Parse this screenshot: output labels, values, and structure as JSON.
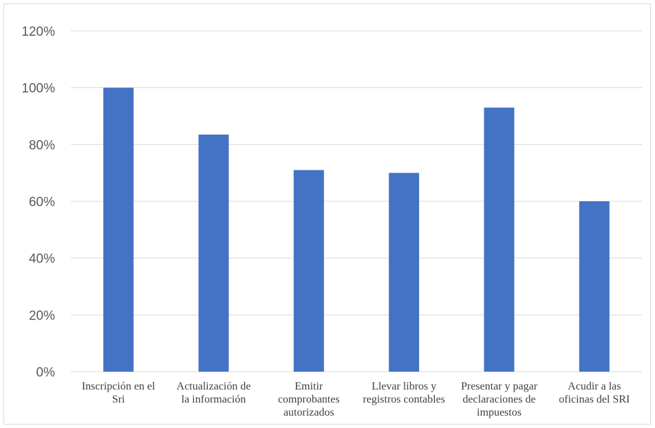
{
  "chart_data": {
    "type": "bar",
    "title": "",
    "xlabel": "",
    "ylabel": "",
    "categories": [
      [
        "Inscripción en el",
        "Sri"
      ],
      [
        "Actualización de",
        "la información"
      ],
      [
        "Emitir",
        "comprobantes",
        "autorizados"
      ],
      [
        "Llevar libros y",
        "registros contables"
      ],
      [
        "Presentar y pagar",
        "declaraciones de",
        "impuestos"
      ],
      [
        "Acudir a las",
        "oficinas del SRI"
      ]
    ],
    "values": [
      100,
      83.5,
      71,
      70,
      93,
      60
    ],
    "ylim": [
      0,
      120
    ],
    "yticks": [
      0,
      20,
      40,
      60,
      80,
      100,
      120
    ],
    "ytick_labels": [
      "0%",
      "20%",
      "40%",
      "60%",
      "80%",
      "100%",
      "120%"
    ],
    "grid": true,
    "legend": "none",
    "bar_color": "#4472c4",
    "grid_color": "#d9d9d9"
  }
}
